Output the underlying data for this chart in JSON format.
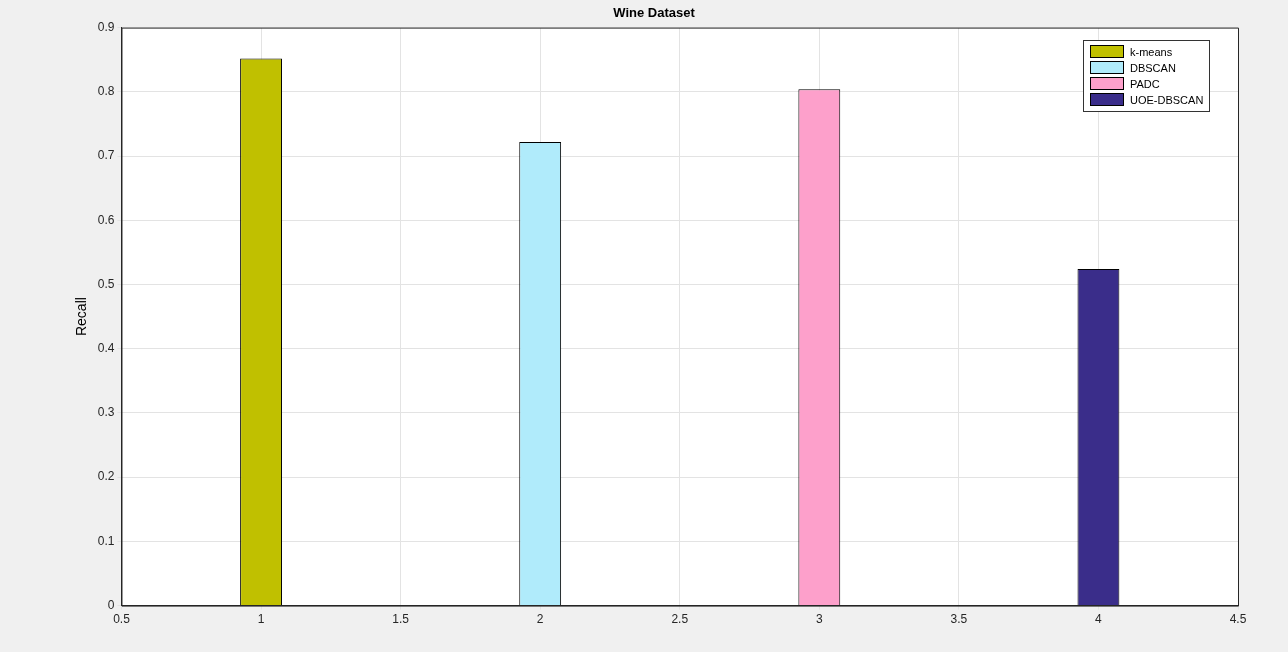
{
  "chart_data": {
    "type": "bar",
    "title": "Wine Dataset",
    "ylabel": "Recall",
    "series": [
      {
        "name": "k-means",
        "color": "#c0c000",
        "x": [
          1
        ],
        "values": [
          0.852
        ]
      },
      {
        "name": "DBSCAN",
        "color": "#b0ebfb",
        "x": [
          2
        ],
        "values": [
          0.722
        ]
      },
      {
        "name": "PADC",
        "color": "#fda0cb",
        "x": [
          3
        ],
        "values": [
          0.804
        ]
      },
      {
        "name": "UOE-DBSCAN",
        "color": "#3a2d8a",
        "x": [
          4
        ],
        "values": [
          0.524
        ]
      }
    ],
    "xlim": [
      0.5,
      4.5
    ],
    "xticks": [
      0.5,
      1,
      1.5,
      2,
      2.5,
      3,
      3.5,
      4,
      4.5
    ],
    "ylim": [
      0,
      0.9
    ],
    "yticks": [
      0,
      0.1,
      0.2,
      0.3,
      0.4,
      0.5,
      0.6,
      0.7,
      0.8,
      0.9
    ],
    "grid": true,
    "legend": "top right"
  }
}
